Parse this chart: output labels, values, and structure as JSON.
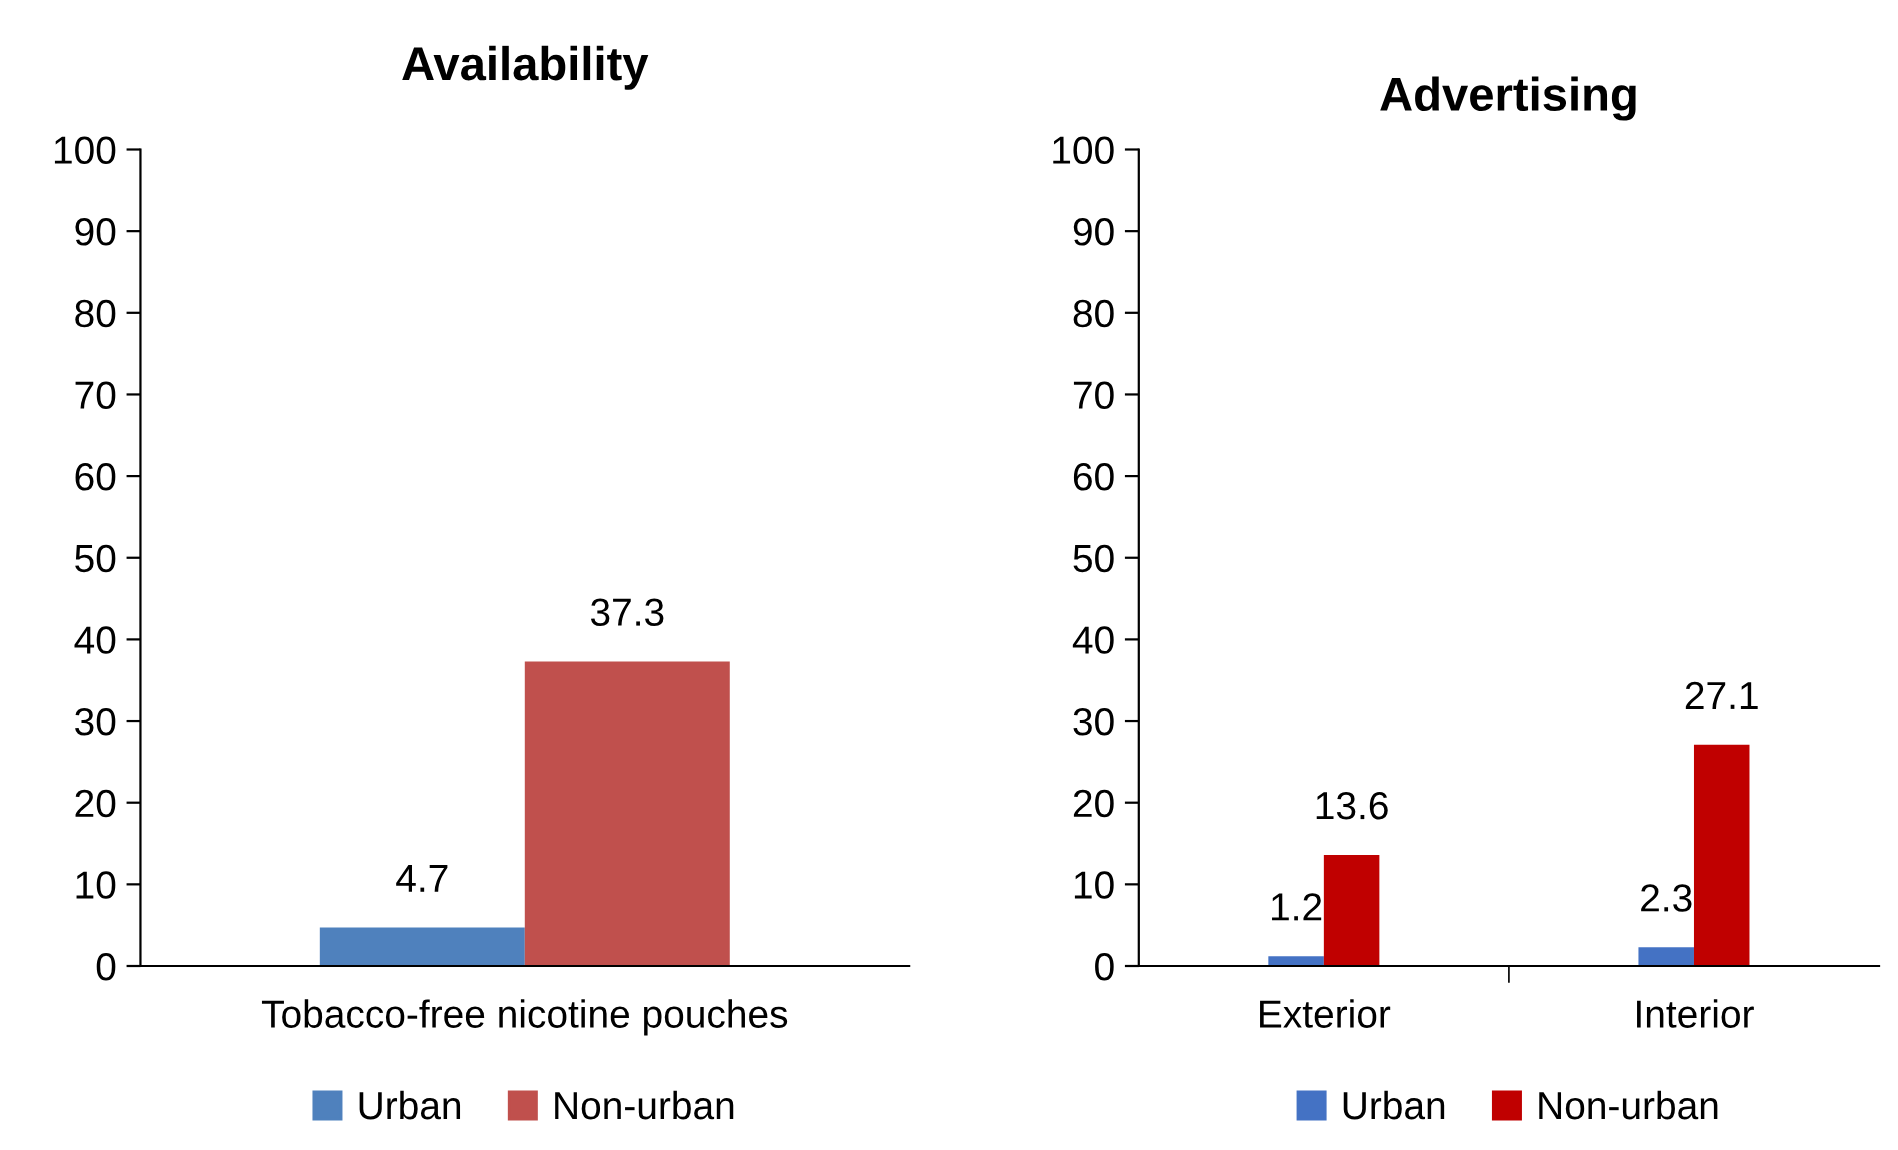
{
  "chart_data": [
    {
      "type": "bar",
      "title": "Availability",
      "categories": [
        "Tobacco-free nicotine pouches"
      ],
      "series": [
        {
          "name": "Urban",
          "color": "#4f81bd",
          "values": [
            4.7
          ]
        },
        {
          "name": "Non-urban",
          "color": "#c0504d",
          "values": [
            37.3
          ]
        }
      ],
      "ylim": [
        0,
        100
      ],
      "yticks": [
        0,
        10,
        20,
        30,
        40,
        50,
        60,
        70,
        80,
        90,
        100
      ],
      "grid": false,
      "legend": "bottom",
      "data_labels": true
    },
    {
      "type": "bar",
      "title": "Advertising",
      "categories": [
        "Exterior",
        "Interior"
      ],
      "series": [
        {
          "name": "Urban",
          "color": "#4472c4",
          "values": [
            1.2,
            2.3
          ]
        },
        {
          "name": "Non-urban",
          "color": "#c00000",
          "values": [
            13.6,
            27.1
          ]
        }
      ],
      "ylim": [
        0,
        100
      ],
      "yticks": [
        0,
        10,
        20,
        30,
        40,
        50,
        60,
        70,
        80,
        90,
        100
      ],
      "grid": false,
      "legend": "bottom",
      "data_labels": true
    }
  ]
}
